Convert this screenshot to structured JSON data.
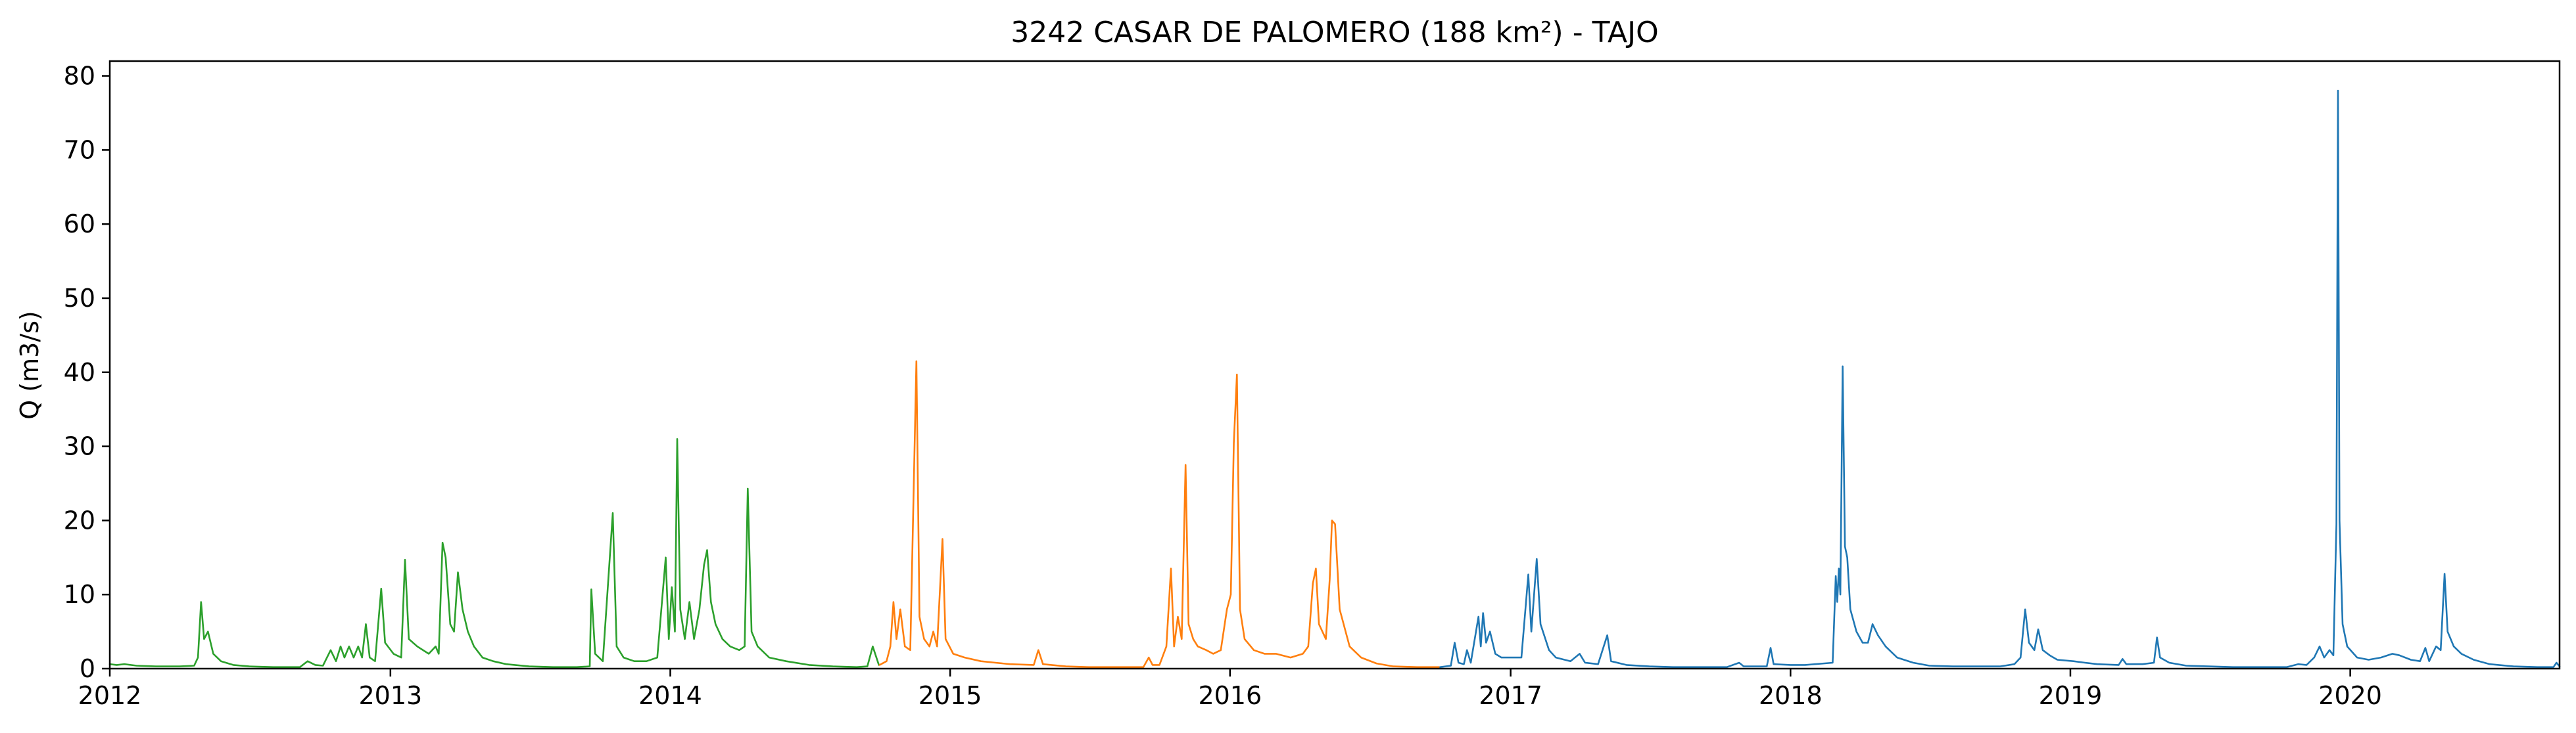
{
  "chart_data": {
    "type": "line",
    "title": "3242 CASAR DE PALOMERO (188 km²) - TAJO",
    "xlabel": "",
    "ylabel": "Q (m3/s)",
    "xlim": [
      "2012-01-01",
      "2020-09-30"
    ],
    "ylim": [
      0,
      82
    ],
    "x_ticks": [
      "2012",
      "2013",
      "2014",
      "2015",
      "2016",
      "2017",
      "2018",
      "2019",
      "2020"
    ],
    "y_ticks": [
      0,
      10,
      20,
      30,
      40,
      50,
      60,
      70,
      80
    ],
    "grid": false,
    "legend": "none",
    "colors": {
      "green": "#2ca02c",
      "orange": "#ff7f0e",
      "blue": "#1f77b4"
    },
    "series": [
      {
        "color": "green",
        "points": [
          [
            "2012-01-01",
            0.6
          ],
          [
            "2012-01-10",
            0.5
          ],
          [
            "2012-01-20",
            0.6
          ],
          [
            "2012-02-05",
            0.4
          ],
          [
            "2012-03-01",
            0.3
          ],
          [
            "2012-04-01",
            0.3
          ],
          [
            "2012-04-20",
            0.4
          ],
          [
            "2012-04-25",
            1.5
          ],
          [
            "2012-04-29",
            9.0
          ],
          [
            "2012-05-03",
            4.0
          ],
          [
            "2012-05-08",
            5.0
          ],
          [
            "2012-05-15",
            2.0
          ],
          [
            "2012-05-25",
            1.0
          ],
          [
            "2012-06-10",
            0.5
          ],
          [
            "2012-07-01",
            0.3
          ],
          [
            "2012-08-01",
            0.2
          ],
          [
            "2012-09-05",
            0.2
          ],
          [
            "2012-09-15",
            1.0
          ],
          [
            "2012-09-25",
            0.5
          ],
          [
            "2012-10-05",
            0.4
          ],
          [
            "2012-10-15",
            2.5
          ],
          [
            "2012-10-22",
            1.0
          ],
          [
            "2012-10-28",
            3.0
          ],
          [
            "2012-11-02",
            1.5
          ],
          [
            "2012-11-08",
            3.0
          ],
          [
            "2012-11-14",
            1.5
          ],
          [
            "2012-11-20",
            3.0
          ],
          [
            "2012-11-25",
            1.5
          ],
          [
            "2012-11-30",
            6.0
          ],
          [
            "2012-12-05",
            1.5
          ],
          [
            "2012-12-12",
            1.0
          ],
          [
            "2012-12-20",
            10.8
          ],
          [
            "2012-12-25",
            3.5
          ],
          [
            "2013-01-05",
            2.0
          ],
          [
            "2013-01-15",
            1.5
          ],
          [
            "2013-01-20",
            14.7
          ],
          [
            "2013-01-25",
            4.0
          ],
          [
            "2013-02-05",
            3.0
          ],
          [
            "2013-02-20",
            2.0
          ],
          [
            "2013-03-01",
            3.0
          ],
          [
            "2013-03-05",
            2.0
          ],
          [
            "2013-03-10",
            17.0
          ],
          [
            "2013-03-14",
            15.0
          ],
          [
            "2013-03-20",
            6.0
          ],
          [
            "2013-03-25",
            5.0
          ],
          [
            "2013-03-30",
            13.0
          ],
          [
            "2013-04-05",
            8.0
          ],
          [
            "2013-04-12",
            5.0
          ],
          [
            "2013-04-20",
            3.0
          ],
          [
            "2013-05-01",
            1.5
          ],
          [
            "2013-05-15",
            1.0
          ],
          [
            "2013-06-01",
            0.6
          ],
          [
            "2013-07-01",
            0.3
          ],
          [
            "2013-08-01",
            0.2
          ],
          [
            "2013-09-01",
            0.2
          ],
          [
            "2013-09-18",
            0.3
          ],
          [
            "2013-09-20",
            10.7
          ],
          [
            "2013-09-25",
            2.0
          ],
          [
            "2013-10-05",
            1.0
          ],
          [
            "2013-10-18",
            21.0
          ],
          [
            "2013-10-23",
            3.0
          ],
          [
            "2013-11-01",
            1.5
          ],
          [
            "2013-11-15",
            1.0
          ],
          [
            "2013-12-01",
            1.0
          ],
          [
            "2013-12-15",
            1.5
          ],
          [
            "2013-12-26",
            15.0
          ],
          [
            "2013-12-30",
            4.0
          ],
          [
            "2014-01-03",
            11.0
          ],
          [
            "2014-01-07",
            5.0
          ],
          [
            "2014-01-10",
            31.0
          ],
          [
            "2014-01-14",
            8.0
          ],
          [
            "2014-01-20",
            4.0
          ],
          [
            "2014-01-26",
            9.0
          ],
          [
            "2014-02-01",
            4.0
          ],
          [
            "2014-02-08",
            8.0
          ],
          [
            "2014-02-14",
            14.0
          ],
          [
            "2014-02-18",
            16.0
          ],
          [
            "2014-02-23",
            9.0
          ],
          [
            "2014-03-01",
            6.0
          ],
          [
            "2014-03-10",
            4.0
          ],
          [
            "2014-03-20",
            3.0
          ],
          [
            "2014-04-01",
            2.5
          ],
          [
            "2014-04-08",
            3.0
          ],
          [
            "2014-04-12",
            24.3
          ],
          [
            "2014-04-17",
            5.0
          ],
          [
            "2014-04-25",
            3.0
          ],
          [
            "2014-05-10",
            1.5
          ],
          [
            "2014-06-01",
            1.0
          ],
          [
            "2014-07-01",
            0.5
          ],
          [
            "2014-08-01",
            0.3
          ],
          [
            "2014-09-01",
            0.2
          ],
          [
            "2014-09-15",
            0.3
          ],
          [
            "2014-09-22",
            3.0
          ],
          [
            "2014-09-30",
            0.5
          ]
        ]
      },
      {
        "color": "orange",
        "points": [
          [
            "2014-10-01",
            0.5
          ],
          [
            "2014-10-10",
            1.0
          ],
          [
            "2014-10-15",
            3.0
          ],
          [
            "2014-10-19",
            9.0
          ],
          [
            "2014-10-23",
            4.0
          ],
          [
            "2014-10-28",
            8.0
          ],
          [
            "2014-11-03",
            3.0
          ],
          [
            "2014-11-10",
            2.5
          ],
          [
            "2014-11-18",
            41.5
          ],
          [
            "2014-11-22",
            7.0
          ],
          [
            "2014-11-28",
            4.0
          ],
          [
            "2014-12-05",
            3.0
          ],
          [
            "2014-12-10",
            5.0
          ],
          [
            "2014-12-15",
            3.0
          ],
          [
            "2014-12-22",
            17.5
          ],
          [
            "2014-12-26",
            4.0
          ],
          [
            "2015-01-05",
            2.0
          ],
          [
            "2015-01-20",
            1.5
          ],
          [
            "2015-02-10",
            1.0
          ],
          [
            "2015-03-01",
            0.8
          ],
          [
            "2015-03-20",
            0.6
          ],
          [
            "2015-04-20",
            0.5
          ],
          [
            "2015-04-26",
            2.5
          ],
          [
            "2015-05-02",
            0.6
          ],
          [
            "2015-06-01",
            0.3
          ],
          [
            "2015-07-01",
            0.2
          ],
          [
            "2015-08-01",
            0.2
          ],
          [
            "2015-09-10",
            0.2
          ],
          [
            "2015-09-17",
            1.5
          ],
          [
            "2015-09-22",
            0.5
          ],
          [
            "2015-10-01",
            0.5
          ],
          [
            "2015-10-10",
            3.0
          ],
          [
            "2015-10-16",
            13.5
          ],
          [
            "2015-10-20",
            3.0
          ],
          [
            "2015-10-25",
            7.0
          ],
          [
            "2015-10-30",
            4.0
          ],
          [
            "2015-11-04",
            27.5
          ],
          [
            "2015-11-08",
            6.0
          ],
          [
            "2015-11-14",
            4.0
          ],
          [
            "2015-11-20",
            3.0
          ],
          [
            "2015-12-01",
            2.5
          ],
          [
            "2015-12-10",
            2.0
          ],
          [
            "2015-12-20",
            2.5
          ],
          [
            "2015-12-28",
            8.0
          ],
          [
            "2016-01-02",
            10.0
          ],
          [
            "2016-01-06",
            30.5
          ],
          [
            "2016-01-10",
            39.7
          ],
          [
            "2016-01-14",
            8.0
          ],
          [
            "2016-01-20",
            4.0
          ],
          [
            "2016-02-01",
            2.5
          ],
          [
            "2016-02-15",
            2.0
          ],
          [
            "2016-03-01",
            2.0
          ],
          [
            "2016-03-20",
            1.5
          ],
          [
            "2016-04-05",
            2.0
          ],
          [
            "2016-04-12",
            3.0
          ],
          [
            "2016-04-18",
            11.5
          ],
          [
            "2016-04-22",
            13.5
          ],
          [
            "2016-04-26",
            6.0
          ],
          [
            "2016-05-05",
            4.0
          ],
          [
            "2016-05-10",
            12.0
          ],
          [
            "2016-05-13",
            20.0
          ],
          [
            "2016-05-17",
            19.5
          ],
          [
            "2016-05-23",
            8.0
          ],
          [
            "2016-06-05",
            3.0
          ],
          [
            "2016-06-20",
            1.5
          ],
          [
            "2016-07-10",
            0.7
          ],
          [
            "2016-08-01",
            0.3
          ],
          [
            "2016-09-01",
            0.2
          ],
          [
            "2016-09-30",
            0.2
          ]
        ]
      },
      {
        "color": "blue",
        "points": [
          [
            "2016-10-01",
            0.2
          ],
          [
            "2016-10-15",
            0.4
          ],
          [
            "2016-10-20",
            3.5
          ],
          [
            "2016-10-25",
            0.8
          ],
          [
            "2016-11-01",
            0.6
          ],
          [
            "2016-11-05",
            2.5
          ],
          [
            "2016-11-10",
            0.8
          ],
          [
            "2016-11-20",
            7.0
          ],
          [
            "2016-11-23",
            3.0
          ],
          [
            "2016-11-26",
            7.5
          ],
          [
            "2016-11-30",
            3.5
          ],
          [
            "2016-12-05",
            5.0
          ],
          [
            "2016-12-12",
            2.0
          ],
          [
            "2016-12-20",
            1.5
          ],
          [
            "2017-01-05",
            1.5
          ],
          [
            "2017-01-15",
            1.5
          ],
          [
            "2017-01-24",
            12.7
          ],
          [
            "2017-01-28",
            5.0
          ],
          [
            "2017-02-04",
            14.8
          ],
          [
            "2017-02-09",
            6.0
          ],
          [
            "2017-02-20",
            2.5
          ],
          [
            "2017-03-01",
            1.5
          ],
          [
            "2017-03-20",
            1.0
          ],
          [
            "2017-04-01",
            2.0
          ],
          [
            "2017-04-08",
            0.8
          ],
          [
            "2017-04-25",
            0.6
          ],
          [
            "2017-05-07",
            4.5
          ],
          [
            "2017-05-12",
            1.0
          ],
          [
            "2017-06-01",
            0.5
          ],
          [
            "2017-07-01",
            0.3
          ],
          [
            "2017-08-01",
            0.2
          ],
          [
            "2017-09-01",
            0.2
          ],
          [
            "2017-10-10",
            0.2
          ],
          [
            "2017-10-26",
            0.8
          ],
          [
            "2017-11-01",
            0.3
          ],
          [
            "2017-12-01",
            0.3
          ],
          [
            "2017-12-06",
            2.8
          ],
          [
            "2017-12-10",
            0.6
          ],
          [
            "2018-01-01",
            0.5
          ],
          [
            "2018-01-20",
            0.5
          ],
          [
            "2018-02-25",
            0.8
          ],
          [
            "2018-03-01",
            12.5
          ],
          [
            "2018-03-03",
            9.0
          ],
          [
            "2018-03-05",
            13.5
          ],
          [
            "2018-03-07",
            10.0
          ],
          [
            "2018-03-10",
            40.8
          ],
          [
            "2018-03-13",
            16.5
          ],
          [
            "2018-03-16",
            15.0
          ],
          [
            "2018-03-20",
            8.0
          ],
          [
            "2018-03-28",
            5.0
          ],
          [
            "2018-04-05",
            3.5
          ],
          [
            "2018-04-12",
            3.5
          ],
          [
            "2018-04-18",
            6.0
          ],
          [
            "2018-04-25",
            4.5
          ],
          [
            "2018-05-05",
            3.0
          ],
          [
            "2018-05-20",
            1.5
          ],
          [
            "2018-06-10",
            0.8
          ],
          [
            "2018-07-01",
            0.4
          ],
          [
            "2018-08-01",
            0.3
          ],
          [
            "2018-09-01",
            0.3
          ],
          [
            "2018-10-01",
            0.3
          ],
          [
            "2018-10-20",
            0.6
          ],
          [
            "2018-10-28",
            1.5
          ],
          [
            "2018-11-03",
            8.0
          ],
          [
            "2018-11-08",
            3.5
          ],
          [
            "2018-11-15",
            2.5
          ],
          [
            "2018-11-20",
            5.3
          ],
          [
            "2018-11-26",
            2.5
          ],
          [
            "2018-12-05",
            1.8
          ],
          [
            "2018-12-15",
            1.2
          ],
          [
            "2019-01-05",
            1.0
          ],
          [
            "2019-01-20",
            0.8
          ],
          [
            "2019-02-05",
            0.6
          ],
          [
            "2019-03-05",
            0.5
          ],
          [
            "2019-03-10",
            1.3
          ],
          [
            "2019-03-15",
            0.6
          ],
          [
            "2019-04-05",
            0.6
          ],
          [
            "2019-04-20",
            0.8
          ],
          [
            "2019-04-24",
            4.2
          ],
          [
            "2019-04-28",
            1.5
          ],
          [
            "2019-05-10",
            0.8
          ],
          [
            "2019-06-01",
            0.4
          ],
          [
            "2019-07-01",
            0.3
          ],
          [
            "2019-08-01",
            0.2
          ],
          [
            "2019-09-01",
            0.2
          ],
          [
            "2019-10-10",
            0.2
          ],
          [
            "2019-10-25",
            0.6
          ],
          [
            "2019-11-05",
            0.5
          ],
          [
            "2019-11-15",
            1.5
          ],
          [
            "2019-11-22",
            3.0
          ],
          [
            "2019-11-28",
            1.5
          ],
          [
            "2019-12-05",
            2.5
          ],
          [
            "2019-12-10",
            1.8
          ],
          [
            "2019-12-14",
            19.5
          ],
          [
            "2019-12-16",
            78.0
          ],
          [
            "2019-12-18",
            20.0
          ],
          [
            "2019-12-22",
            6.0
          ],
          [
            "2019-12-28",
            3.0
          ],
          [
            "2020-01-10",
            1.5
          ],
          [
            "2020-01-25",
            1.2
          ],
          [
            "2020-02-10",
            1.5
          ],
          [
            "2020-02-25",
            2.0
          ],
          [
            "2020-03-05",
            1.8
          ],
          [
            "2020-03-20",
            1.2
          ],
          [
            "2020-04-01",
            1.0
          ],
          [
            "2020-04-08",
            2.8
          ],
          [
            "2020-04-13",
            1.0
          ],
          [
            "2020-04-22",
            3.0
          ],
          [
            "2020-04-28",
            2.5
          ],
          [
            "2020-05-03",
            12.8
          ],
          [
            "2020-05-07",
            5.0
          ],
          [
            "2020-05-15",
            3.0
          ],
          [
            "2020-05-25",
            2.0
          ],
          [
            "2020-06-10",
            1.2
          ],
          [
            "2020-07-01",
            0.6
          ],
          [
            "2020-08-01",
            0.3
          ],
          [
            "2020-09-01",
            0.2
          ],
          [
            "2020-09-22",
            0.2
          ],
          [
            "2020-09-26",
            0.8
          ],
          [
            "2020-09-30",
            0.3
          ]
        ]
      }
    ]
  }
}
